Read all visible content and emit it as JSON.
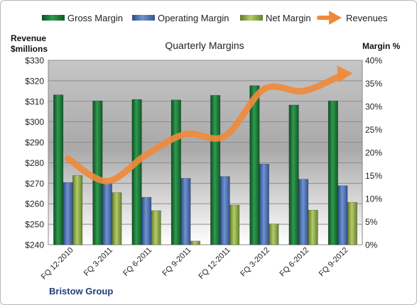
{
  "chart_data": {
    "type": "bar",
    "title": "Quarterly Margins",
    "footer": "Bristow Group",
    "y_left_label_line1": "Revenue",
    "y_left_label_line2": "$millions",
    "y_right_label": "Margin %",
    "categories": [
      "FQ 12-2010",
      "FQ 3-2011",
      "FQ 6-2011",
      "FQ 9-2011",
      "FQ 12-2011",
      "FQ 3-2012",
      "FQ 6-2012",
      "FQ 9-2012"
    ],
    "left_axis": {
      "min": 240,
      "max": 330,
      "step": 10,
      "unit_prefix": "$"
    },
    "right_axis": {
      "min": 0,
      "max": 40,
      "step": 5,
      "unit_suffix": "%"
    },
    "series": [
      {
        "name": "Gross Margin",
        "axis": "right",
        "kind": "bar",
        "color": "#1e7a3a",
        "values": [
          32.5,
          31.2,
          31.5,
          31.4,
          32.4,
          34.5,
          30.3,
          31.2
        ]
      },
      {
        "name": "Operating Margin",
        "axis": "right",
        "kind": "bar",
        "color": "#4f74b5",
        "values": [
          13.5,
          13.3,
          10.3,
          14.4,
          14.8,
          17.5,
          14.2,
          12.8
        ]
      },
      {
        "name": "Net Margin",
        "axis": "right",
        "kind": "bar",
        "color": "#8daa48",
        "values": [
          15.0,
          11.3,
          7.4,
          0.8,
          8.6,
          4.5,
          7.5,
          9.2
        ]
      },
      {
        "name": "Revenues",
        "axis": "left",
        "kind": "line",
        "color": "#ef8a3c",
        "values": [
          282,
          271,
          284,
          294,
          293,
          316,
          315,
          323
        ]
      }
    ],
    "grid": true,
    "legend": "top"
  }
}
